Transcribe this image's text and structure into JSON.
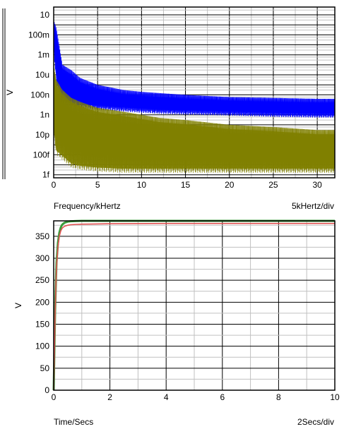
{
  "chart_data": [
    {
      "type": "line",
      "title": "",
      "xlabel": "Frequency/kHertz",
      "x_scale_label": "5kHertz/div",
      "ylabel": "V",
      "y_scale": "log",
      "xlim": [
        0,
        32
      ],
      "ylim": [
        5e-16,
        60
      ],
      "x_ticks": [
        0,
        5,
        10,
        15,
        20,
        25,
        30
      ],
      "x_tick_labels": [
        "0",
        "5",
        "10",
        "15",
        "20",
        "25",
        "30"
      ],
      "y_ticks": [
        1e-15,
        1e-13,
        1e-11,
        1e-09,
        1e-07,
        1e-05,
        0.001,
        0.1,
        10
      ],
      "y_tick_labels": [
        "1f",
        "100f",
        "10p",
        "1n",
        "100n",
        "10u",
        "1m",
        "100m",
        "10"
      ],
      "grid": true,
      "legend": "none",
      "series": [
        {
          "color": "#0000ff",
          "band_x": [
            0,
            0.3,
            1,
            2,
            3,
            5,
            8,
            10,
            12,
            15,
            20,
            25,
            30,
            32
          ],
          "upper": [
            3,
            0.5,
            0.0001,
            3e-05,
            5e-06,
            1e-06,
            3e-07,
            2e-07,
            1.5e-07,
            1e-07,
            6e-08,
            5e-08,
            4e-08,
            4e-08
          ],
          "lower": [
            0.003,
            1e-06,
            1e-08,
            8e-09,
            5e-09,
            3e-09,
            2e-09,
            1.5e-09,
            1.2e-09,
            1e-09,
            8e-10,
            6e-10,
            5e-10,
            5e-10
          ]
        },
        {
          "color": "#808000",
          "band_x": [
            0,
            0.3,
            1,
            2,
            3,
            5,
            8,
            10,
            12,
            15,
            20,
            25,
            30,
            32
          ],
          "upper": [
            0.0001,
            3e-06,
            3e-07,
            5e-08,
            2e-08,
            5e-09,
            2e-09,
            1e-09,
            5e-10,
            3e-10,
            1e-10,
            6e-11,
            3e-11,
            3e-11
          ],
          "lower": [
            1e-11,
            1e-13,
            3e-14,
            5e-15,
            3e-15,
            2e-15,
            1.5e-15,
            1.5e-15,
            1.5e-15,
            1.5e-15,
            1.5e-15,
            1.5e-15,
            1.5e-15,
            1.5e-15
          ]
        }
      ]
    },
    {
      "type": "line",
      "title": "",
      "xlabel": "Time/Secs",
      "x_scale_label": "2Secs/div",
      "ylabel": "V",
      "xlim": [
        0,
        10
      ],
      "ylim": [
        0,
        385
      ],
      "x_ticks": [
        0,
        2,
        4,
        6,
        8,
        10
      ],
      "x_tick_labels": [
        "0",
        "2",
        "4",
        "6",
        "8",
        "10"
      ],
      "y_ticks": [
        0,
        50,
        100,
        150,
        200,
        250,
        300,
        350
      ],
      "y_tick_labels": [
        "0",
        "50",
        "100",
        "150",
        "200",
        "250",
        "300",
        "350"
      ],
      "grid": true,
      "legend": "none",
      "series": [
        {
          "color": "#3a9b3a",
          "x": [
            0,
            0.02,
            0.05,
            0.08,
            0.1,
            0.15,
            0.2,
            0.25,
            0.3,
            0.35,
            0.4,
            0.5,
            0.6,
            0.8,
            1,
            2,
            4,
            6,
            8,
            10
          ],
          "y": [
            0,
            70,
            180,
            250,
            290,
            335,
            358,
            370,
            376,
            379,
            381,
            383,
            384,
            384.5,
            385,
            385,
            385,
            385,
            385,
            385
          ]
        },
        {
          "color": "#e05050",
          "x": [
            0,
            0.02,
            0.05,
            0.08,
            0.1,
            0.15,
            0.2,
            0.25,
            0.3,
            0.35,
            0.4,
            0.5,
            0.6,
            0.8,
            1,
            1.5,
            2,
            4,
            6,
            8,
            10
          ],
          "y": [
            0,
            65,
            170,
            240,
            280,
            325,
            350,
            362,
            368,
            371,
            373,
            375,
            376,
            377,
            377.5,
            378,
            378.5,
            379,
            379,
            379,
            379
          ]
        }
      ]
    }
  ]
}
